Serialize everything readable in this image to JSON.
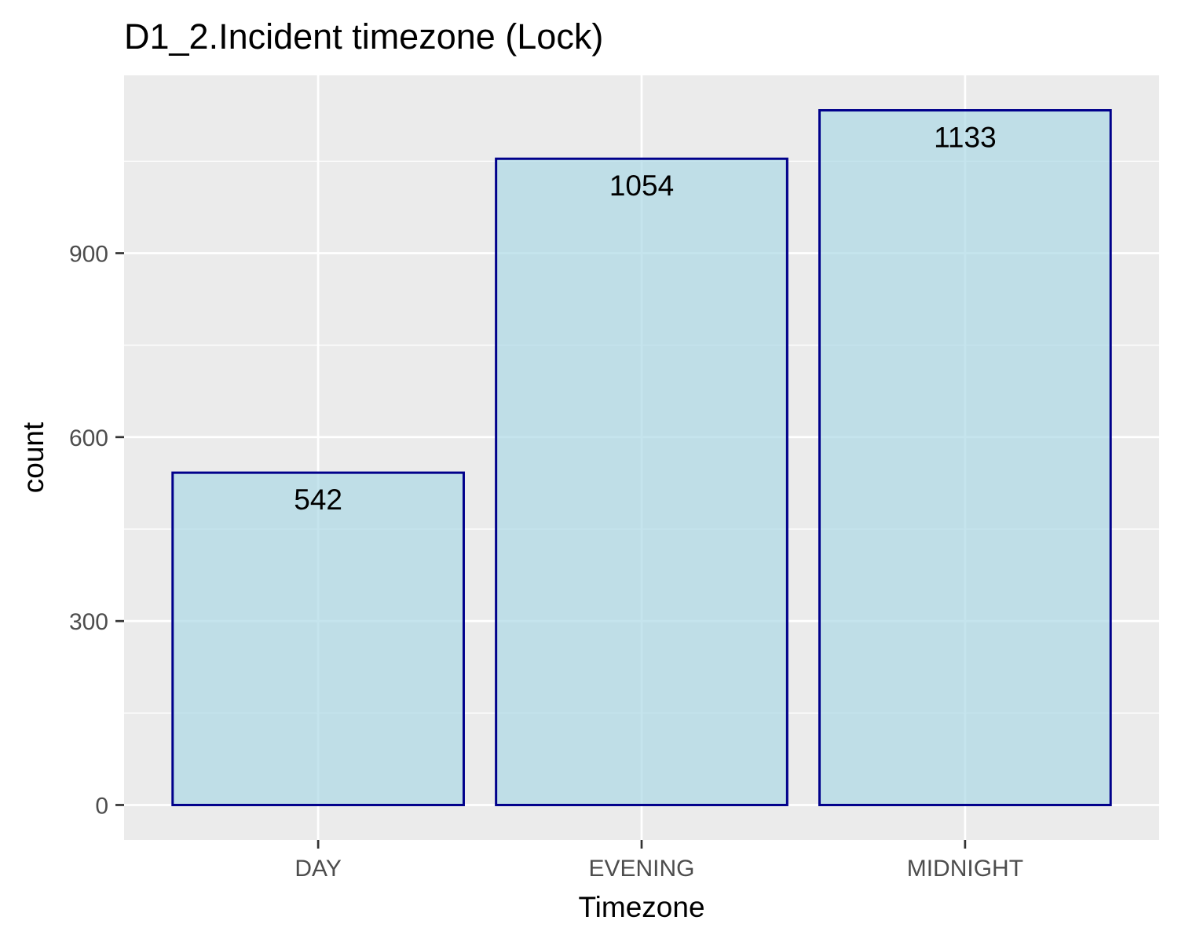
{
  "chart_data": {
    "type": "bar",
    "title": "D1_2.Incident timezone (Lock)",
    "xlabel": "Timezone",
    "ylabel": "count",
    "categories": [
      "DAY",
      "EVENING",
      "MIDNIGHT"
    ],
    "values": [
      542,
      1054,
      1133
    ],
    "data_labels": [
      "542",
      "1054",
      "1133"
    ],
    "yticks": [
      0,
      300,
      600,
      900
    ],
    "ytick_labels": [
      "0",
      "300",
      "600",
      "900"
    ],
    "ylim": [
      -57,
      1190
    ],
    "grid": true,
    "legend": "none",
    "colors": {
      "panel_background": "#ebebeb",
      "grid": "#ffffff",
      "bar_fill": "#add8e6",
      "bar_fill_opacity": 0.7,
      "bar_stroke": "#00008b"
    }
  }
}
